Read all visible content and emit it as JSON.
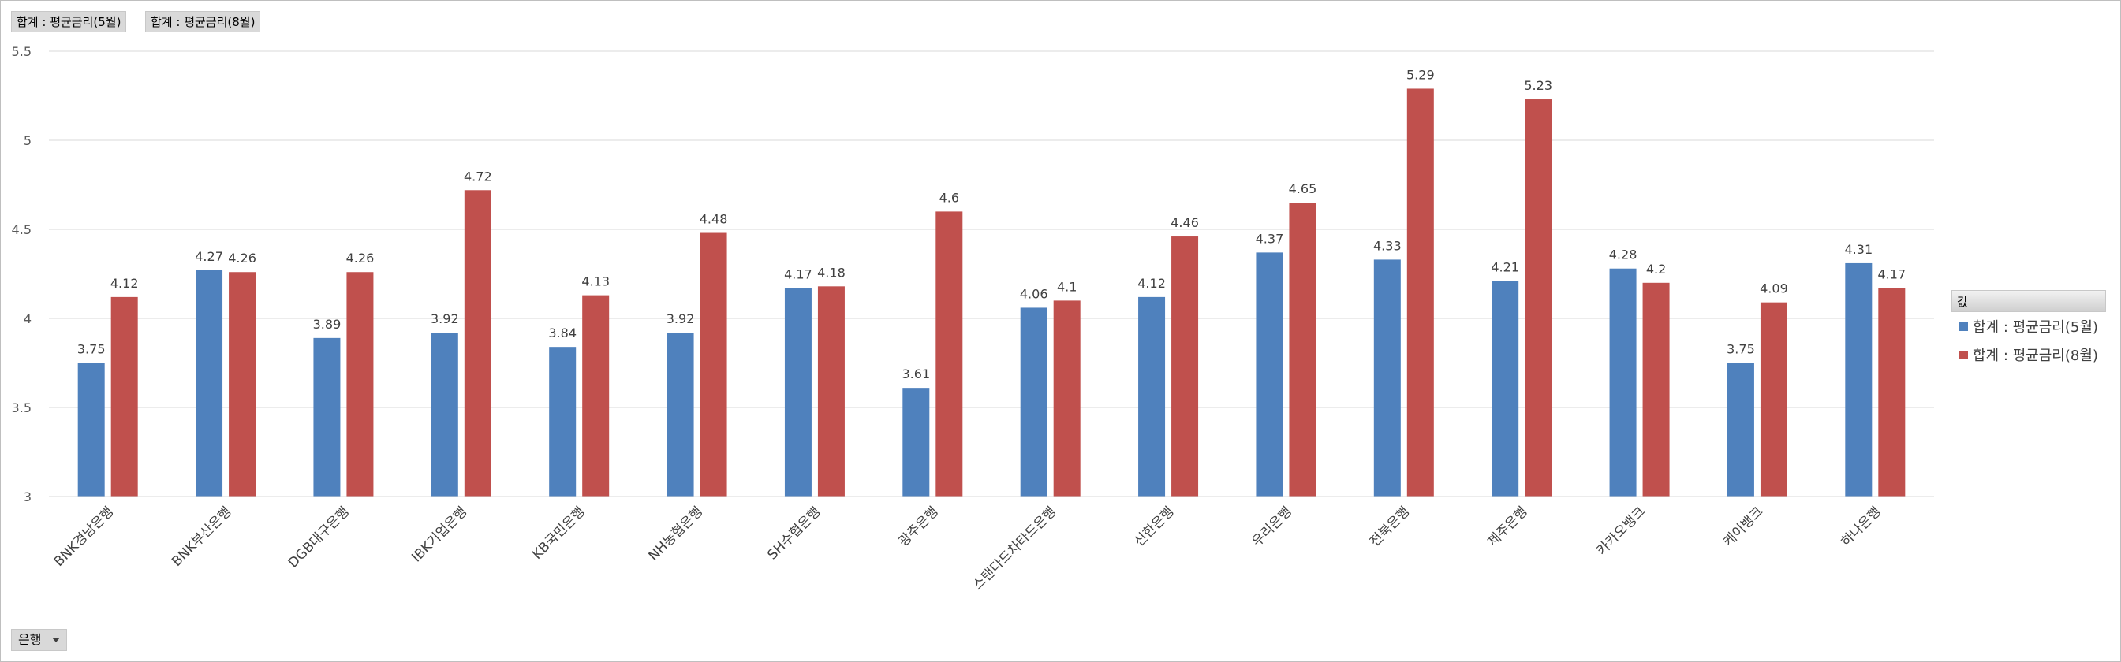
{
  "field_buttons": [
    "합계 : 평균금리(5월)",
    "합계 : 평균금리(8월)"
  ],
  "axis_field_button": "은행",
  "legend": {
    "title": "값",
    "items": [
      {
        "label": "합계 : 평균금리(5월)",
        "color": "#4f81bd"
      },
      {
        "label": "합계 : 평균금리(8월)",
        "color": "#c0504d"
      }
    ]
  },
  "chart_data": {
    "type": "bar",
    "categories": [
      "BNK경남은행",
      "BNK부산은행",
      "DGB대구은행",
      "IBK기업은행",
      "KB국민은행",
      "NH농협은행",
      "SH수협은행",
      "광주은행",
      "스탠다드차타드은행",
      "신한은행",
      "우리은행",
      "전북은행",
      "제주은행",
      "카카오뱅크",
      "케이뱅크",
      "하나은행"
    ],
    "series": [
      {
        "name": "합계 : 평균금리(5월)",
        "color": "#4f81bd",
        "values": [
          3.75,
          4.27,
          3.89,
          3.92,
          3.84,
          3.92,
          4.17,
          3.61,
          4.06,
          4.12,
          4.37,
          4.33,
          4.21,
          4.28,
          3.75,
          4.31
        ]
      },
      {
        "name": "합계 : 평균금리(8월)",
        "color": "#c0504d",
        "values": [
          4.12,
          4.26,
          4.26,
          4.72,
          4.13,
          4.48,
          4.18,
          4.6,
          4.1,
          4.46,
          4.65,
          5.29,
          5.23,
          4.2,
          4.09,
          4.17
        ]
      }
    ],
    "ylim": [
      3,
      5.5
    ],
    "yticks": [
      "3",
      "3.5",
      "4",
      "4.5",
      "5",
      "5.5"
    ],
    "data_labels": [
      [
        "3.75",
        "4.27",
        "3.89",
        "3.92",
        "3.84",
        "3.92",
        "4.17",
        "3.61",
        "4.06",
        "4.12",
        "4.37",
        "4.33",
        "4.21",
        "4.28",
        "3.75",
        "4.31"
      ],
      [
        "4.12",
        "4.26",
        "4.26",
        "4.72",
        "4.13",
        "4.48",
        "4.18",
        "4.6",
        "4.1",
        "4.46",
        "4.65",
        "5.29",
        "5.23",
        "4.2",
        "4.09",
        "4.17"
      ]
    ],
    "grid": true,
    "legend_position": "right"
  }
}
